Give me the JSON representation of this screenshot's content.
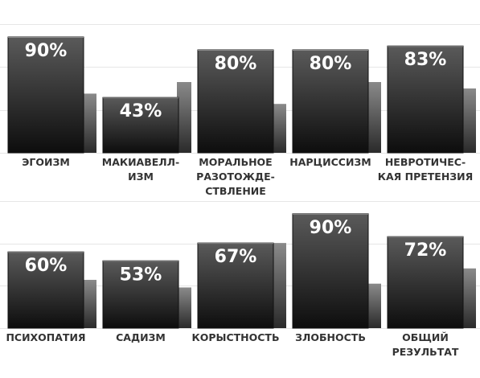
{
  "chart_data": [
    {
      "type": "bar",
      "categories": [
        [
          "ЭГОИЗМ"
        ],
        [
          "МАКИАВЕЛЛ-",
          "ИЗМ"
        ],
        [
          "МОРАЛЬНОЕ",
          "РАЗОТОЖДЕ-",
          "СТВЛЕНИЕ"
        ],
        [
          "НАРЦИССИЗМ"
        ],
        [
          "НЕВРОТИЧЕС-",
          "КАЯ ПРЕТЕНЗИЯ"
        ]
      ],
      "series": [
        {
          "values": [
            90,
            43,
            80,
            80,
            83
          ],
          "labels": [
            "90%",
            "43%",
            "80%",
            "80%",
            "83%"
          ]
        },
        {
          "values": [
            46,
            55,
            38,
            55,
            50
          ]
        }
      ],
      "ylim": [
        0,
        100
      ],
      "grid": true
    },
    {
      "type": "bar",
      "categories": [
        [
          "ПСИХОПАТИЯ"
        ],
        [
          "САДИЗМ"
        ],
        [
          "КОРЫСТНОСТЬ"
        ],
        [
          "ЗЛОБНОСТЬ"
        ],
        [
          "ОБЩИЙ",
          "РЕЗУЛЬТАТ"
        ]
      ],
      "series": [
        {
          "values": [
            60,
            53,
            67,
            90,
            72
          ],
          "labels": [
            "60%",
            "53%",
            "67%",
            "90%",
            "72%"
          ]
        },
        {
          "values": [
            38,
            32,
            67,
            35,
            47
          ]
        }
      ],
      "ylim": [
        0,
        100
      ],
      "grid": true
    }
  ],
  "colors": {
    "primary_top": "#5a5a5a",
    "primary_bottom": "#0d0d0d",
    "secondary_top": "#8a8a8a",
    "secondary_bottom": "#2a2a2a",
    "grid": "#e6e6e6",
    "label": "#333333",
    "value_text": "#ffffff"
  }
}
